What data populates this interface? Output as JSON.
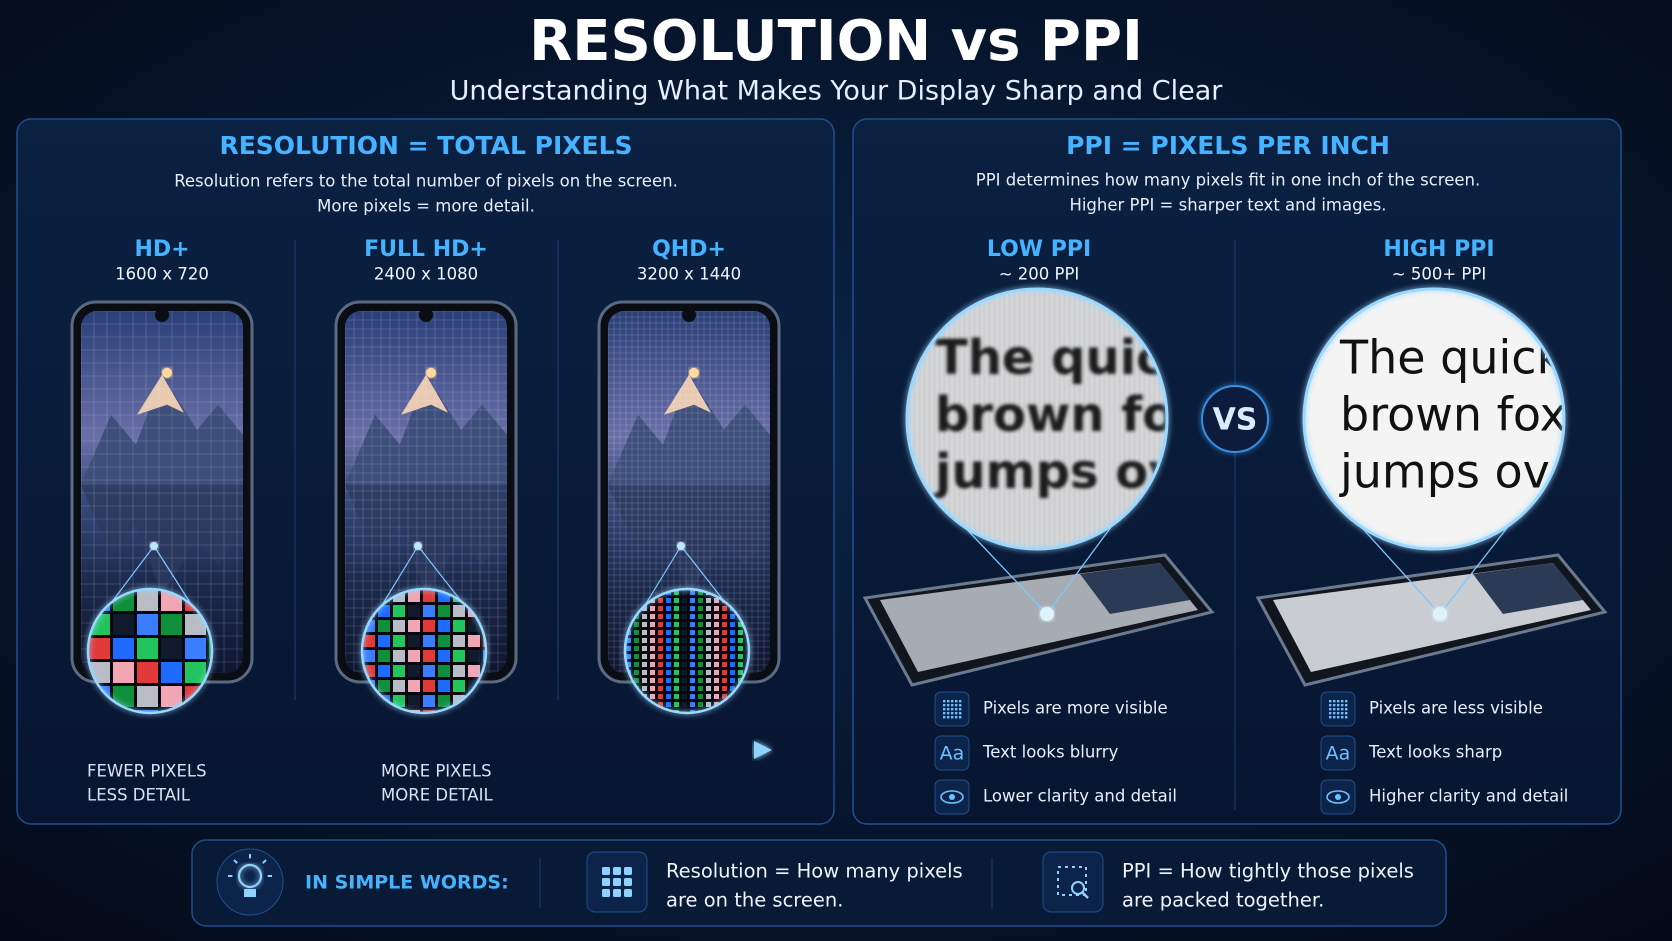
{
  "header": {
    "title": "RESOLUTION vs PPI",
    "subtitle": "Understanding What Makes Your Display Sharp and Clear"
  },
  "resolution": {
    "heading": "RESOLUTION = TOTAL PIXELS",
    "description": [
      "Resolution refers to the total number of pixels on the screen.",
      "More pixels = more detail."
    ],
    "phones": [
      {
        "label": "HD+",
        "resolution": "1600 x 720"
      },
      {
        "label": "FULL HD+",
        "resolution": "2400 x 1080"
      },
      {
        "label": "QHD+",
        "resolution": "3200 x 1440"
      }
    ],
    "scale": {
      "low": [
        "FEWER PIXELS",
        "LESS DETAIL"
      ],
      "high": [
        "MORE PIXELS",
        "MORE DETAIL"
      ]
    }
  },
  "ppi": {
    "heading": "PPI = PIXELS PER INCH",
    "description": [
      "PPI determines how many pixels fit in one inch of the screen.",
      "Higher PPI = sharper text and images."
    ],
    "vs": "VS",
    "aa_icon": "Aa",
    "sides": [
      {
        "label": "LOW PPI",
        "value": "~ 200 PPI",
        "sample": [
          "The quic",
          "brown fox",
          "jumps ov"
        ],
        "features": [
          "Pixels are more visible",
          "Text looks blurry",
          "Lower clarity and detail"
        ]
      },
      {
        "label": "HIGH PPI",
        "value": "~ 500+ PPI",
        "sample": [
          "The quick",
          "brown fox",
          "jumps over"
        ],
        "features": [
          "Pixels are less visible",
          "Text looks sharp",
          "Higher clarity and detail"
        ]
      }
    ]
  },
  "summary": {
    "label": "IN SIMPLE WORDS:",
    "items": [
      [
        "Resolution = How many pixels",
        "are on the screen."
      ],
      [
        "PPI = How tightly those pixels",
        "are packed together."
      ]
    ]
  }
}
